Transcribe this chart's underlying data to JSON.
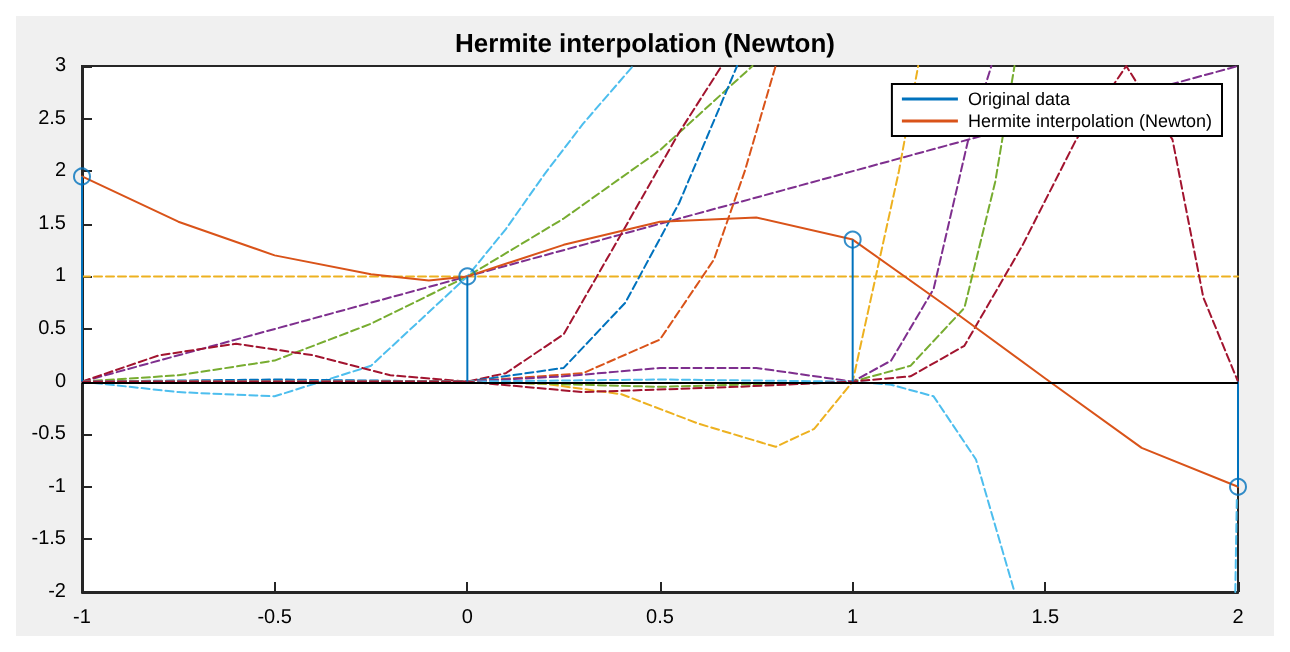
{
  "chart_data": {
    "type": "line",
    "title": "Hermite interpolation (Newton)",
    "xlim": [
      -1,
      2
    ],
    "ylim": [
      -2,
      3
    ],
    "xticks": [
      -1,
      -0.5,
      0,
      0.5,
      1,
      1.5,
      2
    ],
    "yticks": [
      -2,
      -1.5,
      -1,
      -0.5,
      0,
      0.5,
      1,
      1.5,
      2,
      2.5,
      3
    ],
    "grid": false,
    "legend": "top right",
    "ref_lines": [
      {
        "axis": "y",
        "value": 0,
        "color": "#000000"
      }
    ],
    "series": [
      {
        "name": "Original data",
        "type": "lollipop",
        "color": "#0072bd",
        "marker": "circle",
        "x": [
          -1,
          0,
          1,
          2
        ],
        "values": [
          1.95,
          1,
          1.35,
          -1
        ]
      },
      {
        "name": "Hermite interpolation (Newton)",
        "color": "#d95319",
        "marker": "none",
        "line_style": "solid",
        "x": [
          -1,
          -0.75,
          -0.5,
          -0.25,
          -0.1,
          0,
          0.25,
          0.5,
          0.75,
          1,
          1.25,
          1.5,
          1.75,
          2
        ],
        "values": [
          1.95,
          1.52,
          1.2,
          1.02,
          0.96,
          1,
          1.3,
          1.52,
          1.56,
          1.35,
          0.7,
          0.03,
          -0.63,
          -1
        ]
      },
      {
        "color": "#edb120",
        "marker": "none",
        "line_style": "dashed",
        "x": [
          -1,
          2
        ],
        "values": [
          1,
          1
        ]
      },
      {
        "color": "#7e2f8e",
        "marker": "none",
        "line_style": "dashed",
        "x": [
          -1,
          2
        ],
        "values": [
          0,
          3
        ]
      },
      {
        "color": "#77ac30",
        "marker": "none",
        "line_style": "dashed",
        "x": [
          -1,
          -0.75,
          -0.5,
          -0.25,
          0,
          0.25,
          0.5,
          0.74
        ],
        "values": [
          0,
          0.06,
          0.2,
          0.55,
          1,
          1.55,
          2.2,
          3
        ]
      },
      {
        "color": "#4dbeee",
        "marker": "none",
        "line_style": "dashed",
        "x": [
          -1,
          -0.75,
          -0.5,
          -0.25,
          0,
          0.1,
          0.2,
          0.3,
          0.43
        ],
        "values": [
          0,
          -0.1,
          -0.14,
          0.15,
          1,
          1.45,
          1.97,
          2.45,
          3
        ]
      },
      {
        "color": "#a2142f",
        "marker": "none",
        "line_style": "dashed",
        "x": [
          -1,
          -0.8,
          -0.6,
          -0.4,
          -0.2,
          0,
          0.1,
          0.25,
          0.41,
          0.55,
          0.66
        ],
        "values": [
          0,
          0.25,
          0.36,
          0.25,
          0.06,
          0,
          0.08,
          0.45,
          1.47,
          2.37,
          3
        ]
      },
      {
        "color": "#0072bd",
        "marker": "none",
        "line_style": "dashed",
        "x": [
          -1,
          -0.5,
          0,
          0.25,
          0.41,
          0.55,
          0.7
        ],
        "values": [
          0,
          0.02,
          0,
          0.13,
          0.75,
          1.7,
          3
        ]
      },
      {
        "color": "#d95319",
        "marker": "none",
        "line_style": "dashed",
        "x": [
          -1,
          0,
          0.3,
          0.5,
          0.64,
          0.72,
          0.8
        ],
        "values": [
          0,
          0,
          0.08,
          0.4,
          1.16,
          2,
          3
        ]
      },
      {
        "color": "#edb120",
        "marker": "none",
        "line_style": "dashed",
        "x": [
          -1,
          0,
          0.2,
          0.4,
          0.6,
          0.8,
          0.9,
          1,
          1.06,
          1.12,
          1.17
        ],
        "values": [
          0,
          0,
          -0.02,
          -0.12,
          -0.4,
          -0.62,
          -0.45,
          0,
          1,
          2,
          3
        ]
      },
      {
        "color": "#7e2f8e",
        "marker": "none",
        "line_style": "dashed",
        "x": [
          -1,
          0,
          0.25,
          0.5,
          0.75,
          1,
          1.1,
          1.21,
          1.3,
          1.36
        ],
        "values": [
          0,
          0,
          0.05,
          0.13,
          0.13,
          0,
          0.2,
          0.88,
          2.3,
          3
        ]
      },
      {
        "color": "#77ac30",
        "marker": "none",
        "line_style": "dashed",
        "x": [
          -1,
          0,
          0.5,
          1,
          1.15,
          1.29,
          1.37,
          1.42
        ],
        "values": [
          0,
          0,
          -0.05,
          0,
          0.15,
          0.7,
          1.9,
          3
        ]
      },
      {
        "color": "#4dbeee",
        "marker": "none",
        "line_style": "dashed",
        "x": [
          -1,
          0,
          0.5,
          1,
          1.1,
          1.21,
          1.32,
          1.42
        ],
        "values": [
          0,
          0,
          0.02,
          0,
          -0.03,
          -0.14,
          -0.74,
          -2
        ]
      },
      {
        "color": "#4dbeee",
        "marker": "none",
        "line_style": "dashed",
        "x": [
          1.993,
          1.997
        ],
        "values": [
          -2,
          -1.1
        ]
      },
      {
        "color": "#a2142f",
        "marker": "none",
        "line_style": "dashed",
        "x": [
          -1,
          0,
          0.3,
          0.7,
          1,
          1.15,
          1.29,
          1.44,
          1.58,
          1.71,
          1.83,
          1.91,
          2
        ],
        "values": [
          0,
          0,
          -0.1,
          -0.05,
          0,
          0.05,
          0.34,
          1.29,
          2.3,
          3,
          2.3,
          0.8,
          0
        ]
      }
    ]
  }
}
